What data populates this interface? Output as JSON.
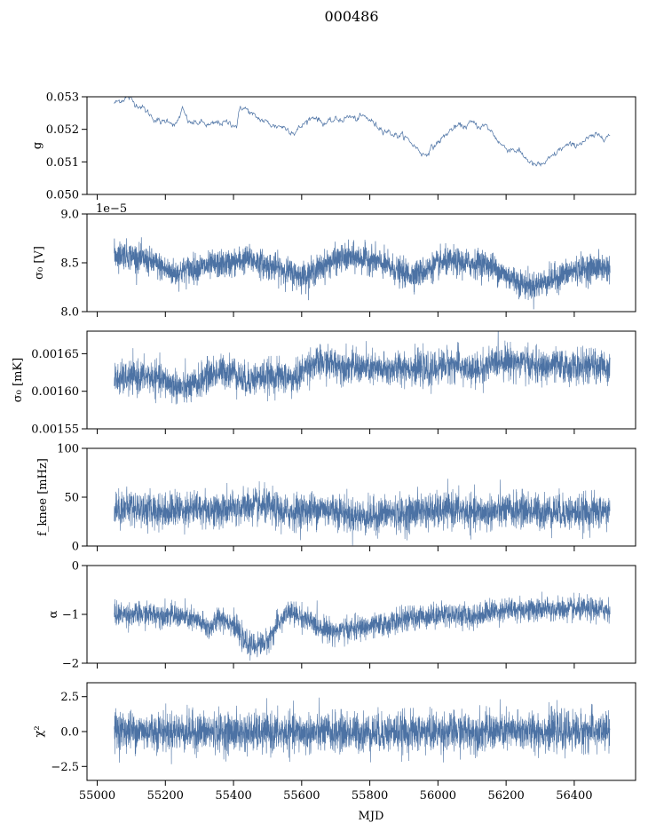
{
  "figure": {
    "title": "000486",
    "xlabel": "MJD",
    "series_color": "#4c72a4"
  },
  "chart_data": [
    {
      "type": "line",
      "name": "g",
      "ylabel": "g",
      "ylim": [
        0.05,
        0.053
      ],
      "yticks": [
        "0.050",
        "0.051",
        "0.052",
        "0.053"
      ],
      "ytick_values": [
        0.05,
        0.051,
        0.052,
        0.053
      ],
      "offset_label": "",
      "xlim": [
        54970,
        56580
      ],
      "show_xticklabels": false,
      "noise": 4e-05,
      "x": [
        55050,
        55070,
        55090,
        55110,
        55130,
        55150,
        55170,
        55190,
        55210,
        55230,
        55250,
        55270,
        55290,
        55310,
        55330,
        55350,
        55370,
        55390,
        55410,
        55420,
        55440,
        55460,
        55480,
        55500,
        55520,
        55540,
        55560,
        55580,
        55600,
        55620,
        55640,
        55660,
        55680,
        55700,
        55720,
        55740,
        55760,
        55780,
        55800,
        55820,
        55840,
        55860,
        55880,
        55900,
        55920,
        55940,
        55960,
        55980,
        56000,
        56020,
        56040,
        56060,
        56080,
        56100,
        56120,
        56140,
        56160,
        56180,
        56200,
        56220,
        56240,
        56260,
        56280,
        56300,
        56320,
        56340,
        56360,
        56380,
        56400,
        56420,
        56440,
        56460,
        56480,
        56505
      ],
      "y": [
        0.0528,
        0.0529,
        0.053,
        0.0528,
        0.0527,
        0.0525,
        0.0523,
        0.0522,
        0.0523,
        0.0521,
        0.0526,
        0.0522,
        0.0522,
        0.0522,
        0.0521,
        0.0522,
        0.0522,
        0.0522,
        0.0521,
        0.0527,
        0.0526,
        0.0524,
        0.0523,
        0.0522,
        0.0521,
        0.0521,
        0.052,
        0.0519,
        0.0521,
        0.0523,
        0.0524,
        0.0522,
        0.0522,
        0.0523,
        0.0523,
        0.0524,
        0.0523,
        0.0524,
        0.0523,
        0.0521,
        0.052,
        0.0519,
        0.0518,
        0.0518,
        0.0516,
        0.0514,
        0.0512,
        0.0514,
        0.0516,
        0.0518,
        0.052,
        0.0521,
        0.0521,
        0.0522,
        0.0521,
        0.0521,
        0.0519,
        0.0516,
        0.0514,
        0.0514,
        0.0513,
        0.0511,
        0.0509,
        0.0509,
        0.051,
        0.0512,
        0.0514,
        0.0515,
        0.0515,
        0.0516,
        0.0517,
        0.0518,
        0.0518,
        0.0518
      ],
      "width": 0.7
    },
    {
      "type": "line",
      "name": "sigma0_V",
      "ylabel": "σ₀ [V]",
      "ylim": [
        8.0,
        9.0
      ],
      "yticks": [
        "8.0",
        "8.5",
        "9.0"
      ],
      "ytick_values": [
        8.0,
        8.5,
        9.0
      ],
      "offset_label": "1e−5",
      "xlim": [
        54970,
        56580
      ],
      "show_xticklabels": false,
      "noise": 0.07,
      "x": [
        55050,
        55080,
        55110,
        55140,
        55170,
        55200,
        55230,
        55260,
        55290,
        55320,
        55350,
        55380,
        55410,
        55440,
        55470,
        55500,
        55530,
        55560,
        55590,
        55620,
        55650,
        55680,
        55710,
        55740,
        55770,
        55800,
        55830,
        55860,
        55890,
        55920,
        55950,
        55980,
        56010,
        56040,
        56070,
        56100,
        56130,
        56160,
        56190,
        56220,
        56250,
        56280,
        56310,
        56340,
        56370,
        56400,
        56430,
        56460,
        56505
      ],
      "y": [
        8.58,
        8.59,
        8.56,
        8.53,
        8.49,
        8.43,
        8.39,
        8.43,
        8.45,
        8.46,
        8.48,
        8.49,
        8.51,
        8.54,
        8.51,
        8.47,
        8.45,
        8.41,
        8.37,
        8.38,
        8.44,
        8.5,
        8.54,
        8.55,
        8.55,
        8.54,
        8.5,
        8.45,
        8.4,
        8.38,
        8.4,
        8.45,
        8.5,
        8.51,
        8.5,
        8.49,
        8.5,
        8.46,
        8.39,
        8.34,
        8.28,
        8.26,
        8.3,
        8.34,
        8.38,
        8.42,
        8.44,
        8.45,
        8.45
      ],
      "width": 0.7
    },
    {
      "type": "line",
      "name": "sigma0_mK",
      "ylabel": "σ₀ [mK]",
      "ylim": [
        0.00155,
        0.00168
      ],
      "yticks": [
        "0.00155",
        "0.00160",
        "0.00165"
      ],
      "ytick_values": [
        0.00155,
        0.0016,
        0.00165
      ],
      "offset_label": "",
      "xlim": [
        54970,
        56580
      ],
      "show_xticklabels": false,
      "noise": 1.1e-05,
      "x": [
        55050,
        55100,
        55150,
        55200,
        55250,
        55280,
        55320,
        55360,
        55400,
        55430,
        55460,
        55500,
        55540,
        55580,
        55620,
        55660,
        55700,
        55740,
        55780,
        55820,
        55860,
        55900,
        55940,
        55980,
        56020,
        56060,
        56100,
        56140,
        56180,
        56220,
        56260,
        56300,
        56340,
        56380,
        56420,
        56460,
        56505
      ],
      "y": [
        0.001615,
        0.001618,
        0.00162,
        0.001613,
        0.001604,
        0.001606,
        0.00162,
        0.001626,
        0.001627,
        0.001614,
        0.001617,
        0.00162,
        0.00162,
        0.001615,
        0.001635,
        0.001638,
        0.001636,
        0.001633,
        0.001631,
        0.001629,
        0.001628,
        0.001633,
        0.00163,
        0.001627,
        0.001636,
        0.001635,
        0.001626,
        0.001632,
        0.001642,
        0.00164,
        0.001637,
        0.001631,
        0.001635,
        0.001632,
        0.001632,
        0.001634,
        0.001632
      ],
      "width": 0.6
    },
    {
      "type": "line",
      "name": "fknee",
      "ylabel": "f_knee [mHz]",
      "ylim": [
        0,
        100
      ],
      "yticks": [
        "0",
        "50",
        "100"
      ],
      "ytick_values": [
        0,
        50,
        100
      ],
      "offset_label": "",
      "xlim": [
        54970,
        56580
      ],
      "show_xticklabels": false,
      "noise": 9,
      "x": [
        55050,
        55100,
        55150,
        55200,
        55250,
        55300,
        55350,
        55400,
        55450,
        55500,
        55550,
        55600,
        55650,
        55700,
        55750,
        55800,
        55850,
        55900,
        55950,
        56000,
        56050,
        56100,
        56150,
        56200,
        56250,
        56300,
        56350,
        56400,
        56450,
        56505
      ],
      "y": [
        38,
        40,
        37,
        36,
        38,
        39,
        36,
        38,
        41,
        40,
        34,
        36,
        38,
        37,
        31,
        30,
        34,
        32,
        37,
        35,
        38,
        33,
        35,
        36,
        37,
        35,
        36,
        34,
        35,
        36
      ],
      "width": 0.6
    },
    {
      "type": "line",
      "name": "alpha",
      "ylabel": "α",
      "ylim": [
        -2,
        0
      ],
      "yticks": [
        "−2",
        "−1",
        "0"
      ],
      "ytick_values": [
        -2,
        -1,
        0
      ],
      "offset_label": "",
      "xlim": [
        54970,
        56580
      ],
      "show_xticklabels": false,
      "noise": 0.12,
      "x": [
        55050,
        55100,
        55150,
        55200,
        55250,
        55300,
        55330,
        55360,
        55400,
        55430,
        55460,
        55500,
        55530,
        55560,
        55600,
        55650,
        55700,
        55750,
        55800,
        55850,
        55900,
        55950,
        56000,
        56050,
        56100,
        56150,
        56200,
        56250,
        56300,
        56350,
        56400,
        56450,
        56505
      ],
      "y": [
        -1.0,
        -1.0,
        -1.0,
        -1.0,
        -1.05,
        -1.15,
        -1.3,
        -1.05,
        -1.2,
        -1.55,
        -1.65,
        -1.55,
        -1.2,
        -0.95,
        -1.05,
        -1.25,
        -1.35,
        -1.3,
        -1.25,
        -1.2,
        -1.1,
        -1.05,
        -1.0,
        -1.0,
        -1.05,
        -0.95,
        -0.9,
        -0.9,
        -0.9,
        -0.9,
        -0.9,
        -0.9,
        -0.9
      ],
      "width": 0.6
    },
    {
      "type": "line",
      "name": "chi2",
      "ylabel": "χ²",
      "ylim": [
        -3.5,
        3.5
      ],
      "yticks": [
        "−2.5",
        "0.0",
        "2.5"
      ],
      "ytick_values": [
        -2.5,
        0.0,
        2.5
      ],
      "offset_label": "",
      "xlim": [
        54970,
        56580
      ],
      "show_xticklabels": true,
      "xticks": [
        "55000",
        "55200",
        "55400",
        "55600",
        "55800",
        "56000",
        "56200",
        "56400"
      ],
      "xtick_values": [
        55000,
        55200,
        55400,
        55600,
        55800,
        56000,
        56200,
        56400
      ],
      "noise": 0.7,
      "x": [
        55050,
        55505,
        56505
      ],
      "y": [
        0.1,
        -0.1,
        0.05
      ],
      "width": 0.6
    }
  ]
}
